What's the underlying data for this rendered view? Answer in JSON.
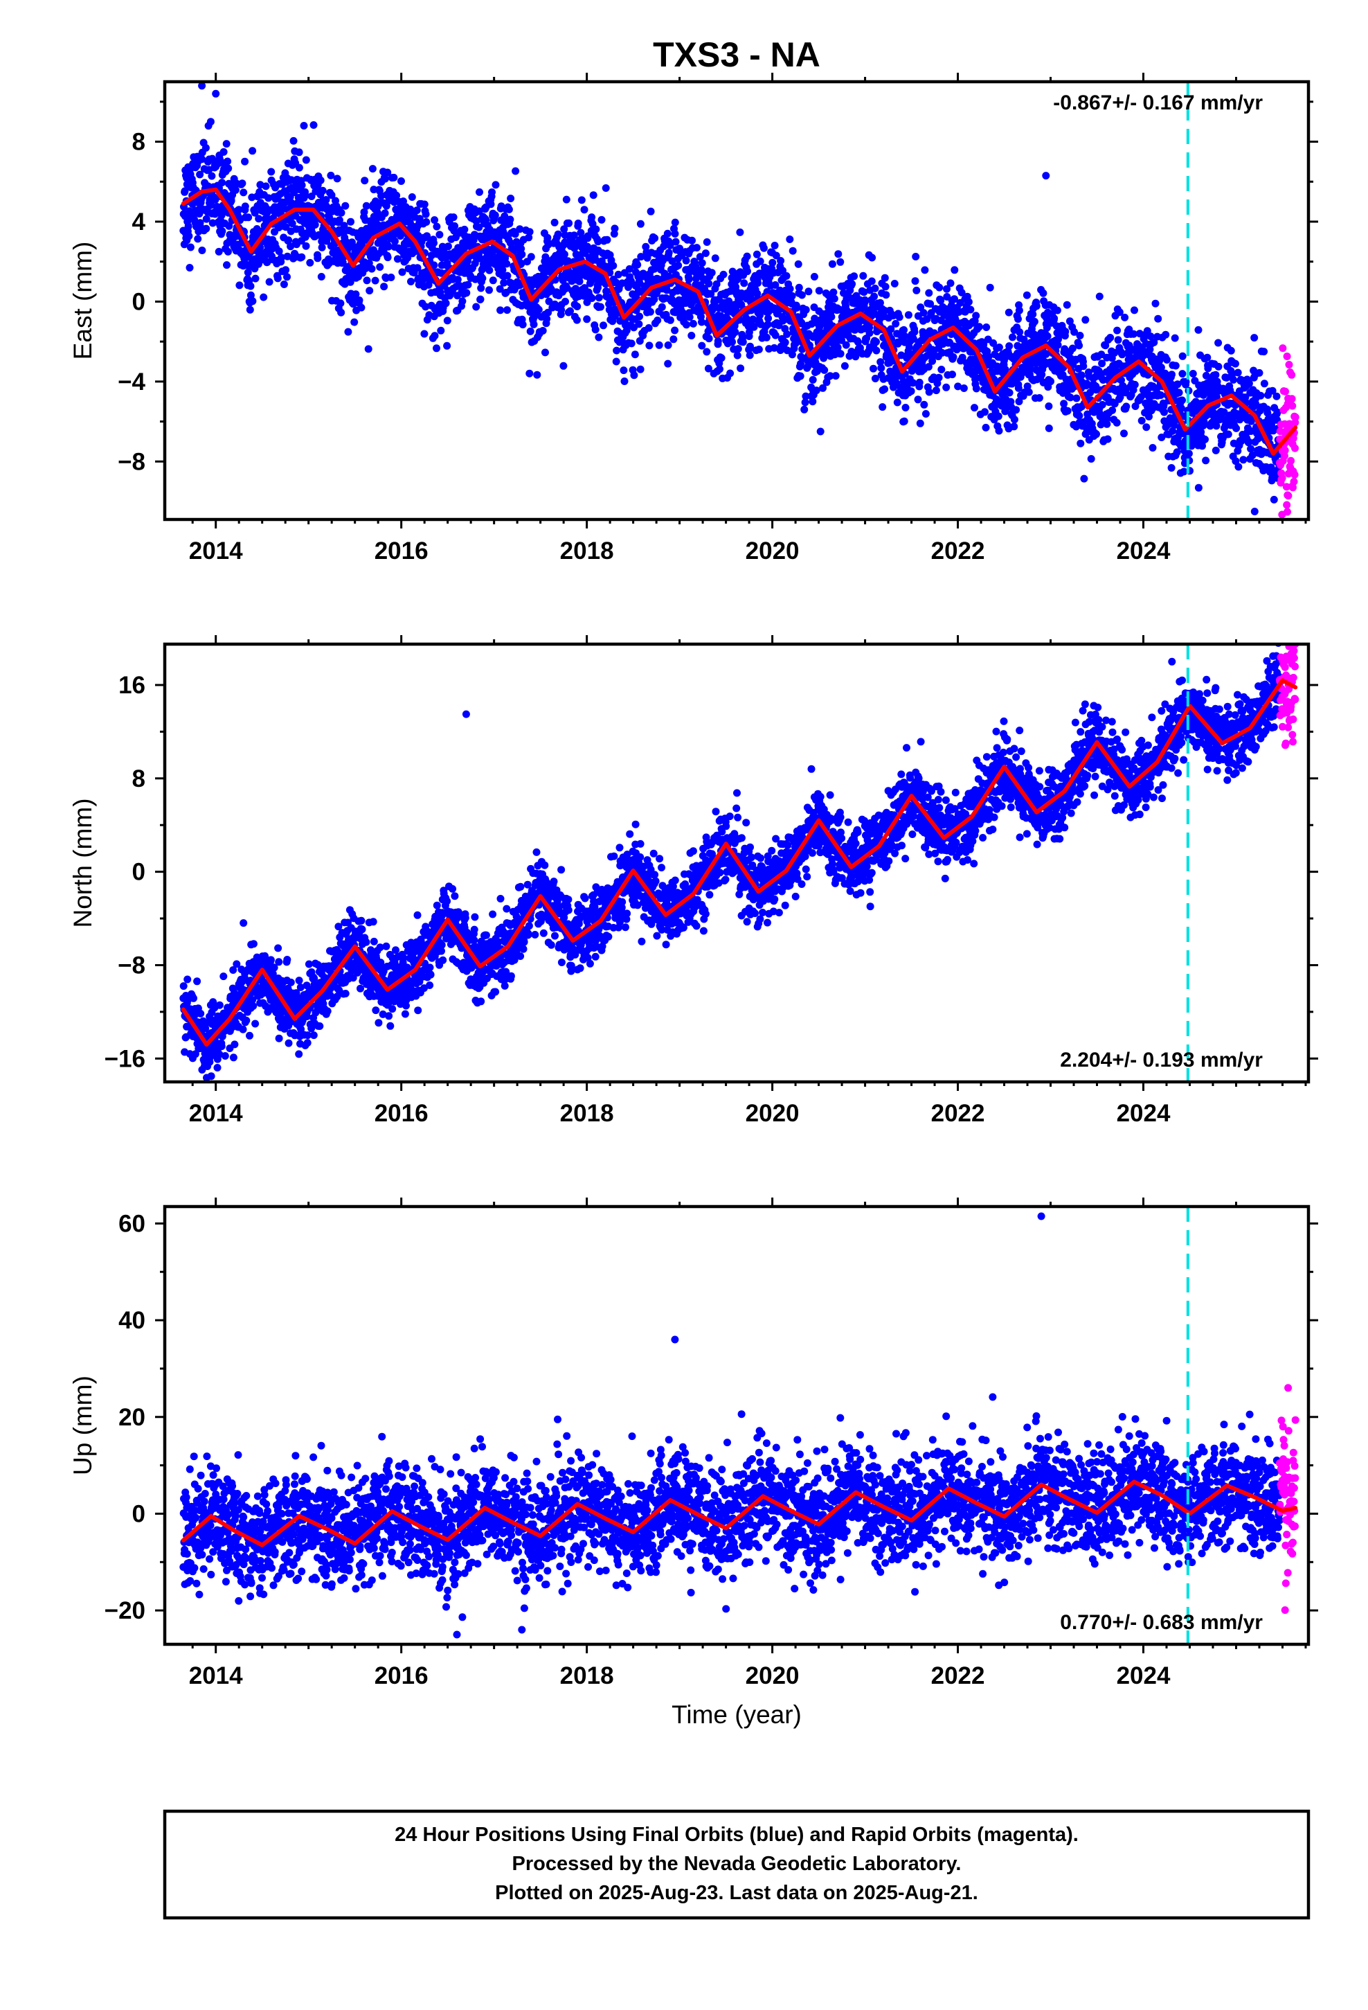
{
  "title": "TXS3 - NA",
  "footer": {
    "lines": [
      "24 Hour Positions Using Final Orbits (blue) and Rapid Orbits (magenta).",
      "Processed by the Nevada Geodetic Laboratory.",
      "Plotted on 2025-Aug-23. Last data on 2025-Aug-21."
    ]
  },
  "colors": {
    "final_orbits": "#0000ff",
    "rapid_orbits": "#ff00ff",
    "model_fit": "#ff0000",
    "equipment_change": "#00e0e0"
  },
  "chart_data": [
    {
      "type": "scatter",
      "component": "east",
      "ylabel": "East (mm)",
      "xlim": [
        2013.45,
        2025.78
      ],
      "ylim": [
        -10.9,
        11.0
      ],
      "x_ticks": [
        2014,
        2016,
        2018,
        2020,
        2022,
        2024
      ],
      "x_tick_labels": [
        "2014",
        "2016",
        "2018",
        "2020",
        "2022",
        "2024"
      ],
      "y_ticks": [
        -8,
        -4,
        0,
        4,
        8
      ],
      "y_tick_labels": [
        "−8",
        "−4",
        "0",
        "4",
        "8"
      ],
      "rate_label": "-0.867+/- 0.167 mm/yr",
      "rate_position": "top-right",
      "equipment_change_year": 2024.48,
      "series": [
        {
          "name": "Final Orbits",
          "start": 2013.65,
          "end": 2025.47
        },
        {
          "name": "Rapid Orbits",
          "start": 2025.47,
          "end": 2025.64
        },
        {
          "name": "Model fit",
          "x": [
            2013.65,
            2013.85,
            2014.0,
            2014.15,
            2014.38,
            2014.6,
            2014.85,
            2015.05,
            2015.25,
            2015.48,
            2015.7,
            2015.98,
            2016.15,
            2016.4,
            2016.7,
            2016.98,
            2017.2,
            2017.4,
            2017.7,
            2017.98,
            2018.2,
            2018.4,
            2018.7,
            2018.95,
            2019.2,
            2019.4,
            2019.7,
            2019.95,
            2020.2,
            2020.4,
            2020.7,
            2020.95,
            2021.2,
            2021.4,
            2021.7,
            2021.95,
            2022.2,
            2022.4,
            2022.7,
            2022.95,
            2023.2,
            2023.4,
            2023.7,
            2023.95,
            2024.2,
            2024.45,
            2024.7,
            2024.95,
            2025.2,
            2025.4,
            2025.64
          ],
          "y": [
            4.9,
            5.5,
            5.6,
            4.6,
            2.5,
            3.9,
            4.6,
            4.6,
            3.5,
            1.8,
            3.2,
            3.9,
            3.0,
            0.9,
            2.4,
            3.0,
            2.3,
            0.1,
            1.6,
            2.0,
            1.4,
            -0.8,
            0.7,
            1.1,
            0.5,
            -1.7,
            -0.4,
            0.3,
            -0.5,
            -2.7,
            -1.2,
            -0.6,
            -1.4,
            -3.5,
            -1.9,
            -1.3,
            -2.4,
            -4.5,
            -2.8,
            -2.2,
            -3.3,
            -5.3,
            -3.8,
            -3.0,
            -4.0,
            -6.4,
            -5.2,
            -4.7,
            -5.7,
            -7.6,
            -6.3
          ]
        }
      ],
      "outliers": [
        [
          2013.85,
          10.8
        ],
        [
          2014.0,
          10.4
        ],
        [
          2014.95,
          8.8
        ],
        [
          2022.95,
          6.3
        ],
        [
          2025.2,
          -10.5
        ]
      ]
    },
    {
      "type": "scatter",
      "component": "north",
      "ylabel": "North (mm)",
      "xlim": [
        2013.45,
        2025.78
      ],
      "ylim": [
        -18.0,
        19.5
      ],
      "x_ticks": [
        2014,
        2016,
        2018,
        2020,
        2022,
        2024
      ],
      "x_tick_labels": [
        "2014",
        "2016",
        "2018",
        "2020",
        "2022",
        "2024"
      ],
      "y_ticks": [
        -16,
        -8,
        0,
        8,
        16
      ],
      "y_tick_labels": [
        "−16",
        "−8",
        "0",
        "8",
        "16"
      ],
      "rate_label": "2.204+/- 0.193 mm/yr",
      "rate_position": "bottom-right",
      "equipment_change_year": 2024.48,
      "series": [
        {
          "name": "Final Orbits",
          "start": 2013.65,
          "end": 2025.47
        },
        {
          "name": "Rapid Orbits",
          "start": 2025.47,
          "end": 2025.64
        },
        {
          "name": "Model fit",
          "x": [
            2013.65,
            2013.9,
            2014.15,
            2014.5,
            2014.85,
            2015.15,
            2015.5,
            2015.85,
            2016.15,
            2016.5,
            2016.85,
            2017.15,
            2017.5,
            2017.85,
            2018.15,
            2018.5,
            2018.85,
            2019.15,
            2019.5,
            2019.85,
            2020.15,
            2020.5,
            2020.85,
            2021.15,
            2021.5,
            2021.85,
            2022.15,
            2022.5,
            2022.85,
            2023.15,
            2023.5,
            2023.85,
            2024.15,
            2024.5,
            2024.85,
            2025.15,
            2025.5,
            2025.64
          ],
          "y": [
            -11.8,
            -14.8,
            -12.6,
            -8.4,
            -12.6,
            -10.2,
            -6.4,
            -10.1,
            -8.4,
            -4.1,
            -8.1,
            -6.4,
            -2.1,
            -5.9,
            -4.2,
            0.1,
            -3.7,
            -1.9,
            2.4,
            -1.7,
            0.1,
            4.4,
            0.4,
            2.2,
            6.5,
            2.9,
            4.7,
            9.0,
            5.1,
            6.9,
            11.1,
            7.3,
            9.4,
            14.2,
            11.0,
            12.3,
            16.4,
            15.8
          ]
        }
      ],
      "outliers": [
        [
          2016.7,
          13.5
        ]
      ]
    },
    {
      "type": "scatter",
      "component": "up",
      "ylabel": "Up (mm)",
      "xlabel": "Time (year)",
      "xlim": [
        2013.45,
        2025.78
      ],
      "ylim": [
        -27.0,
        63.5
      ],
      "x_ticks": [
        2014,
        2016,
        2018,
        2020,
        2022,
        2024
      ],
      "x_tick_labels": [
        "2014",
        "2016",
        "2018",
        "2020",
        "2022",
        "2024"
      ],
      "y_ticks": [
        -20,
        0,
        20,
        40,
        60
      ],
      "y_tick_labels": [
        "−20",
        "0",
        "20",
        "40",
        "60"
      ],
      "rate_label": "0.770+/- 0.683 mm/yr",
      "rate_position": "bottom-right",
      "equipment_change_year": 2024.48,
      "series": [
        {
          "name": "Final Orbits",
          "start": 2013.65,
          "end": 2025.47
        },
        {
          "name": "Rapid Orbits",
          "start": 2025.47,
          "end": 2025.64
        },
        {
          "name": "Model fit",
          "x": [
            2013.65,
            2013.95,
            2014.2,
            2014.5,
            2014.9,
            2015.2,
            2015.5,
            2015.9,
            2016.2,
            2016.5,
            2016.9,
            2017.2,
            2017.5,
            2017.9,
            2018.2,
            2018.5,
            2018.9,
            2019.2,
            2019.5,
            2019.9,
            2020.2,
            2020.5,
            2020.9,
            2021.2,
            2021.5,
            2021.9,
            2022.2,
            2022.5,
            2022.9,
            2023.2,
            2023.5,
            2023.9,
            2024.2,
            2024.5,
            2024.9,
            2025.2,
            2025.5,
            2025.64
          ],
          "y": [
            -5.5,
            -0.5,
            -3.5,
            -6.5,
            -0.5,
            -3.2,
            -6.2,
            0.5,
            -2.6,
            -5.4,
            1.2,
            -1.8,
            -4.6,
            2.0,
            -1.0,
            -3.8,
            2.8,
            -0.2,
            -3.0,
            3.6,
            0.6,
            -2.2,
            4.4,
            1.4,
            -1.4,
            5.2,
            2.2,
            -0.6,
            6.0,
            3.0,
            0.2,
            6.6,
            3.8,
            0.0,
            5.8,
            3.4,
            0.6,
            1.2
          ]
        }
      ],
      "outliers": [
        [
          2018.95,
          36.0
        ],
        [
          2022.9,
          61.5
        ],
        [
          2016.6,
          -25.0
        ],
        [
          2017.3,
          -24.0
        ]
      ]
    }
  ]
}
